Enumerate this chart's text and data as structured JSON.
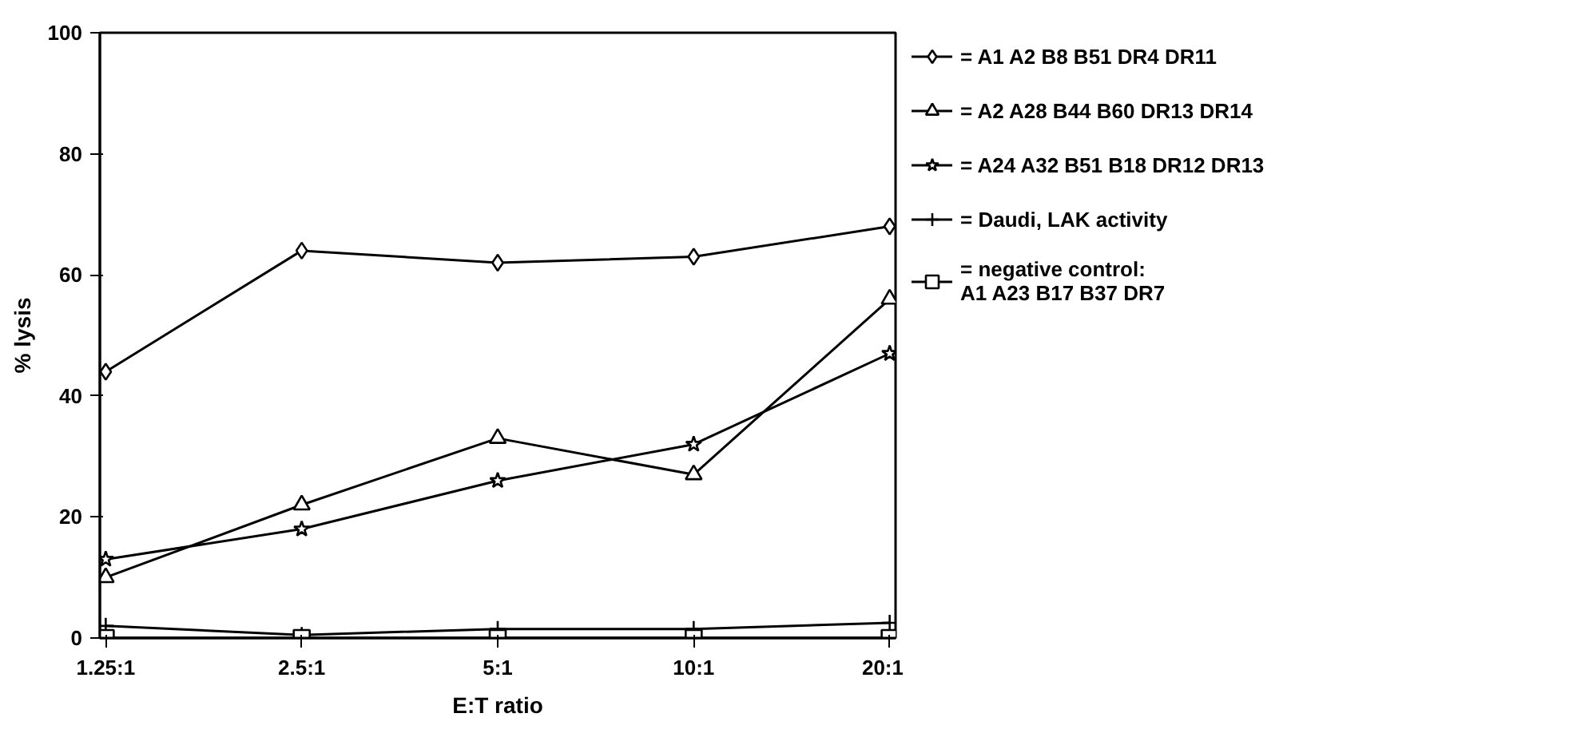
{
  "chart_data": {
    "type": "line",
    "xlabel": "E:T ratio",
    "ylabel": "% lysis",
    "categories": [
      "1.25:1",
      "2.5:1",
      "5:1",
      "10:1",
      "20:1"
    ],
    "series": [
      {
        "name": "= A1 A2 B8 B51 DR4 DR11",
        "color": "#000000",
        "marker": "diamond",
        "values": [
          44,
          64,
          62,
          63,
          68
        ]
      },
      {
        "name": "= A2 A28 B44 B60 DR13 DR14",
        "color": "#000000",
        "marker": "triangle",
        "values": [
          10,
          22,
          33,
          27,
          56
        ]
      },
      {
        "name": "= A24 A32 B51 B18 DR12 DR13",
        "color": "#000000",
        "marker": "star",
        "values": [
          13,
          18,
          26,
          32,
          47
        ]
      },
      {
        "name": "= Daudi, LAK activity",
        "color": "#000000",
        "marker": "cross",
        "values": [
          2,
          0.5,
          1.5,
          1.5,
          2.5
        ]
      },
      {
        "name": "= negative control:\nA1 A23 B17 B37 DR7",
        "color": "#000000",
        "marker": "square",
        "values": [
          0,
          0,
          0,
          0,
          0
        ]
      }
    ],
    "ylim": [
      0,
      100
    ],
    "yticks": [
      0,
      20,
      40,
      60,
      80,
      100
    ],
    "grid": false,
    "legend": "right",
    "line_style": "solid"
  }
}
